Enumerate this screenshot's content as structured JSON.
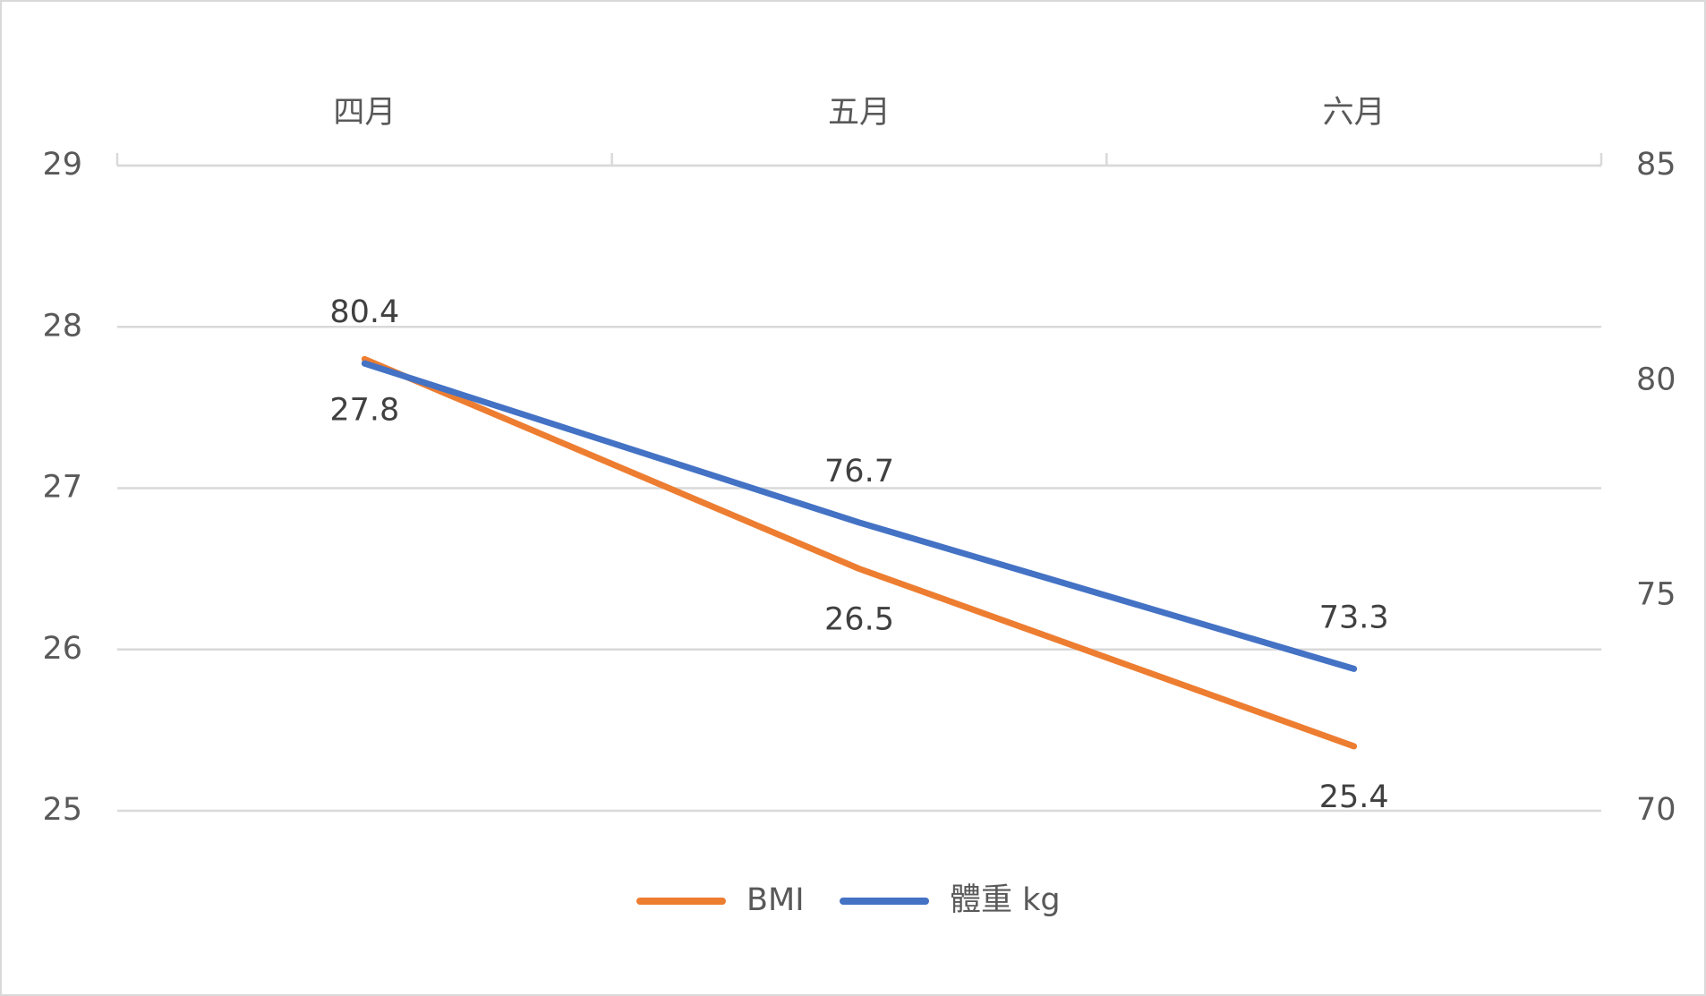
{
  "chart_data": {
    "type": "line",
    "categories": [
      "四月",
      "五月",
      "六月"
    ],
    "series": [
      {
        "name": "BMI",
        "color": "#ed7d31",
        "values": [
          27.8,
          26.5,
          25.4
        ]
      },
      {
        "name": "體重 kg",
        "color": "#4472c4",
        "values": [
          80.4,
          76.7,
          73.3
        ],
        "axis": "y2"
      }
    ],
    "ylim": [
      25,
      29
    ],
    "yticks": [
      25,
      26,
      27,
      28,
      29
    ],
    "y2lim": [
      70,
      85
    ],
    "y2ticks": [
      70,
      75,
      80,
      85
    ],
    "grid": true,
    "legend": "bottom",
    "x_axis_position": "top",
    "data_labels": true
  }
}
